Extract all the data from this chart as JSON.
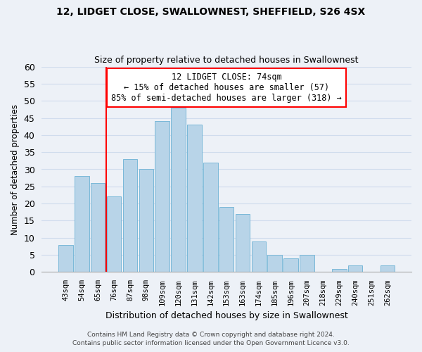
{
  "title": "12, LIDGET CLOSE, SWALLOWNEST, SHEFFIELD, S26 4SX",
  "subtitle": "Size of property relative to detached houses in Swallownest",
  "xlabel": "Distribution of detached houses by size in Swallownest",
  "ylabel": "Number of detached properties",
  "footer_line1": "Contains HM Land Registry data © Crown copyright and database right 2024.",
  "footer_line2": "Contains public sector information licensed under the Open Government Licence v3.0.",
  "bar_labels": [
    "43sqm",
    "54sqm",
    "65sqm",
    "76sqm",
    "87sqm",
    "98sqm",
    "109sqm",
    "120sqm",
    "131sqm",
    "142sqm",
    "153sqm",
    "163sqm",
    "174sqm",
    "185sqm",
    "196sqm",
    "207sqm",
    "218sqm",
    "229sqm",
    "240sqm",
    "251sqm",
    "262sqm"
  ],
  "bar_values": [
    8,
    28,
    26,
    22,
    33,
    30,
    44,
    48,
    43,
    32,
    19,
    17,
    9,
    5,
    4,
    5,
    0,
    1,
    2,
    0,
    2
  ],
  "bar_color": "#b8d4e8",
  "bar_edge_color": "#7ab8d8",
  "vline_x_index": 3,
  "vline_color": "red",
  "annotation_line1": "12 LIDGET CLOSE: 74sqm",
  "annotation_line2": "← 15% of detached houses are smaller (57)",
  "annotation_line3": "85% of semi-detached houses are larger (318) →",
  "annotation_box_edge_color": "red",
  "annotation_box_face_color": "white",
  "ylim": [
    0,
    60
  ],
  "yticks": [
    0,
    5,
    10,
    15,
    20,
    25,
    30,
    35,
    40,
    45,
    50,
    55,
    60
  ],
  "grid_color": "#d0dced",
  "background_color": "#edf1f7"
}
